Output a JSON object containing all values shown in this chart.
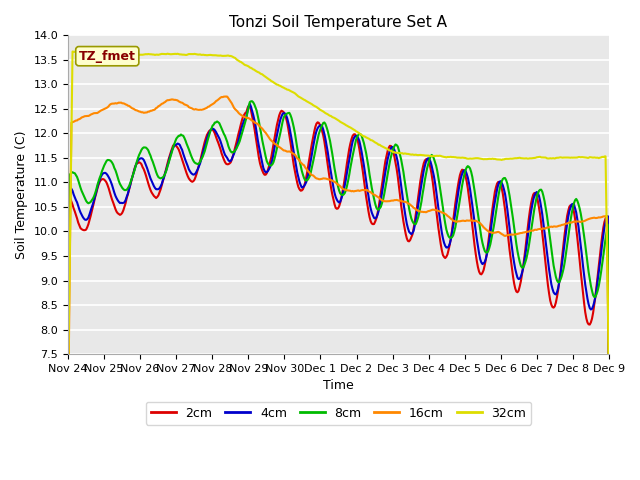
{
  "title": "Tonzi Soil Temperature Set A",
  "xlabel": "Time",
  "ylabel": "Soil Temperature (C)",
  "ylim": [
    7.5,
    14.0
  ],
  "yticks": [
    7.5,
    8.0,
    8.5,
    9.0,
    9.5,
    10.0,
    10.5,
    11.0,
    11.5,
    12.0,
    12.5,
    13.0,
    13.5,
    14.0
  ],
  "xtick_labels": [
    "Nov 24",
    "Nov 25",
    "Nov 26",
    "Nov 27",
    "Nov 28",
    "Nov 29",
    "Nov 30",
    "Dec 1",
    "Dec 2",
    "Dec 3",
    "Dec 4",
    "Dec 5",
    "Dec 6",
    "Dec 7",
    "Dec 8",
    "Dec 9"
  ],
  "legend_label": "TZ_fmet",
  "series_labels": [
    "2cm",
    "4cm",
    "8cm",
    "16cm",
    "32cm"
  ],
  "series_colors": [
    "#dd0000",
    "#0000cc",
    "#00bb00",
    "#ff8800",
    "#dddd00"
  ],
  "plot_bg_color": "#e8e8e8",
  "fig_bg_color": "#ffffff",
  "grid_color": "#ffffff",
  "title_fontsize": 11,
  "axis_label_fontsize": 9,
  "tick_fontsize": 8,
  "legend_fontsize": 9,
  "linewidth": 1.5,
  "n_points": 480
}
